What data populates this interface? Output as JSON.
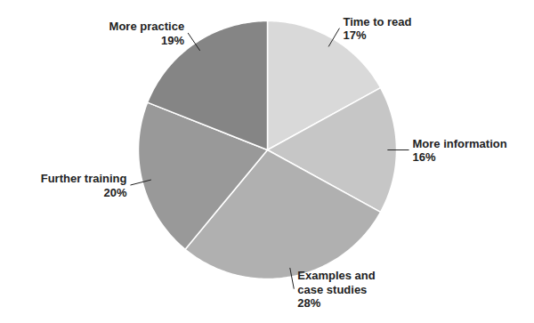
{
  "chart_data": {
    "type": "pie",
    "categories": [
      "Time to read",
      "More information",
      "Examples and\ncase studies",
      "Further training",
      "More practice"
    ],
    "values": [
      17,
      16,
      28,
      20,
      19
    ],
    "value_labels": [
      "17%",
      "16%",
      "28%",
      "20%",
      "19%"
    ],
    "colors": [
      "#d9d9d9",
      "#c6c6c6",
      "#b0b0b0",
      "#999999",
      "#858585"
    ],
    "data_labels": true
  }
}
